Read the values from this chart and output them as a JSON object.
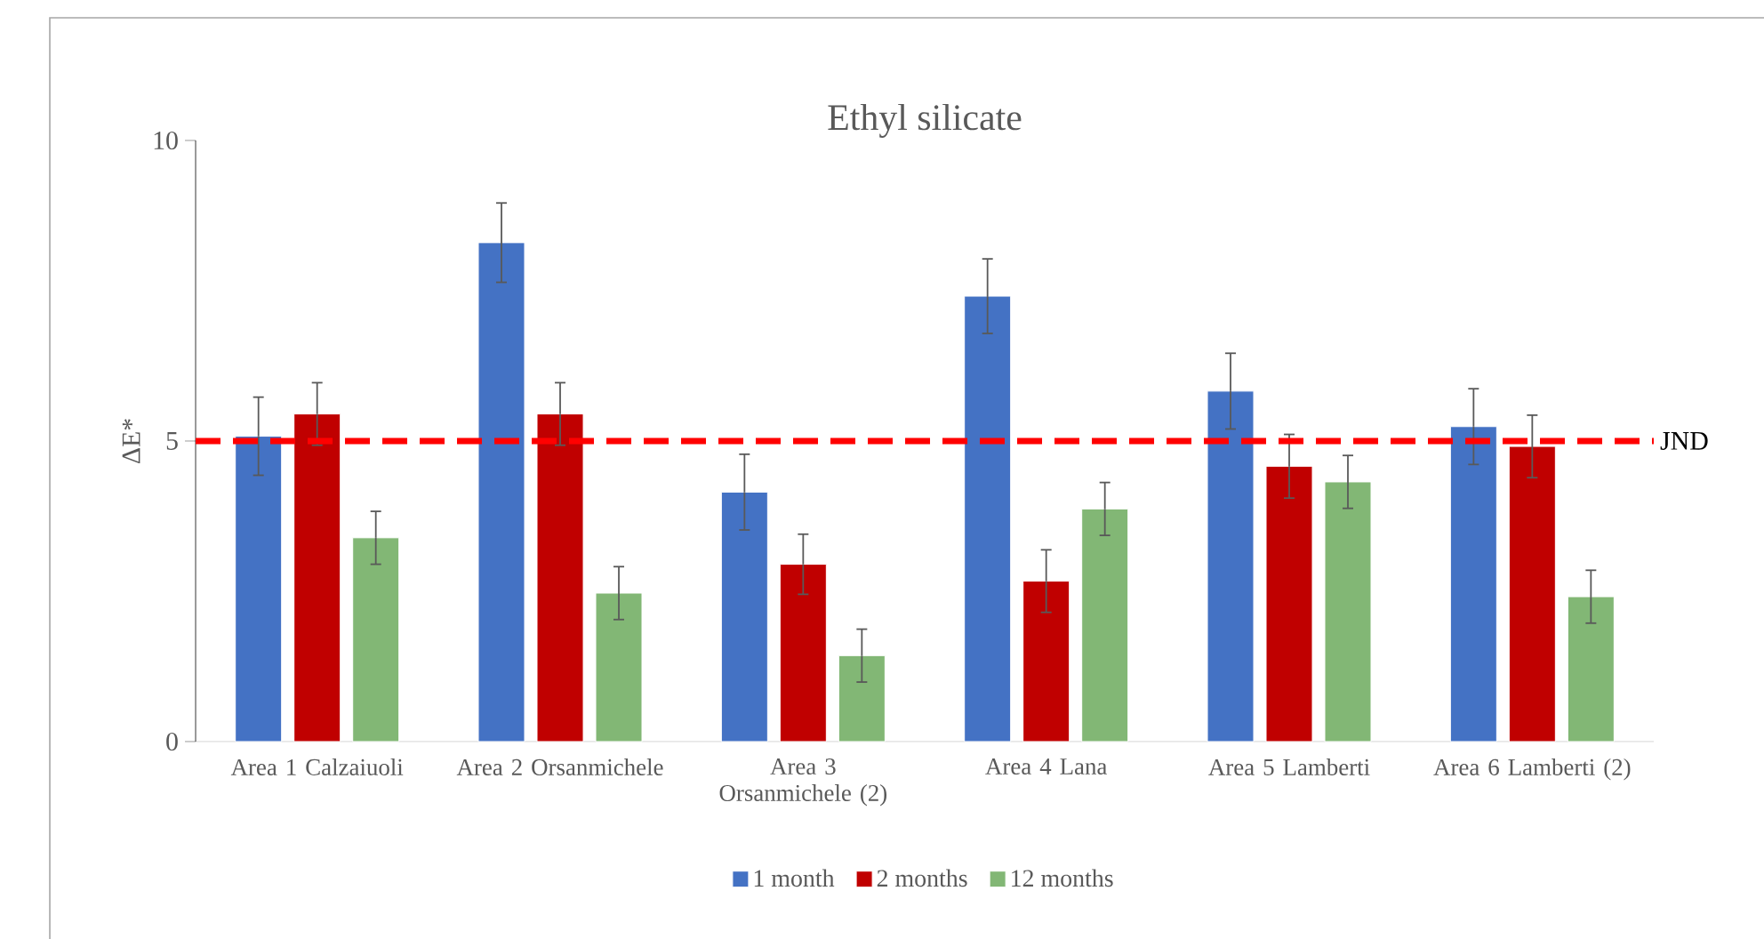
{
  "chart_data": {
    "type": "bar",
    "title": "Ethyl silicate",
    "ylabel": "ΔE*",
    "categories": [
      "Area 1 Calzaiuoli",
      "Area 2 Orsanmichele",
      "Area 3 Orsanmichele (2)",
      "Area 4 Lana",
      "Area 5 Lamberti",
      "Area 6 Lamberti (2)"
    ],
    "series": [
      {
        "name": "1 month",
        "color": "#4472c4",
        "values": [
          5.08,
          8.3,
          4.15,
          7.41,
          5.83,
          5.24
        ],
        "errors": [
          0.65,
          0.66,
          0.63,
          0.62,
          0.63,
          0.63
        ]
      },
      {
        "name": "2 months",
        "color": "#c00000",
        "values": [
          5.45,
          5.45,
          2.95,
          2.67,
          4.58,
          4.91
        ],
        "errors": [
          0.52,
          0.52,
          0.5,
          0.52,
          0.53,
          0.52
        ]
      },
      {
        "name": "12 months",
        "color": "#82b775",
        "values": [
          3.39,
          2.47,
          1.43,
          3.87,
          4.32,
          2.41
        ],
        "errors": [
          0.44,
          0.44,
          0.44,
          0.44,
          0.44,
          0.44
        ]
      }
    ],
    "ylim": [
      0,
      10
    ],
    "yticks": [
      0,
      5,
      10
    ],
    "grid": false,
    "legend": "bottom",
    "ref_lines": [
      {
        "axis": "y",
        "value": 5,
        "label": "JND",
        "color": "#ff0000",
        "line_style": "dashed"
      }
    ]
  }
}
